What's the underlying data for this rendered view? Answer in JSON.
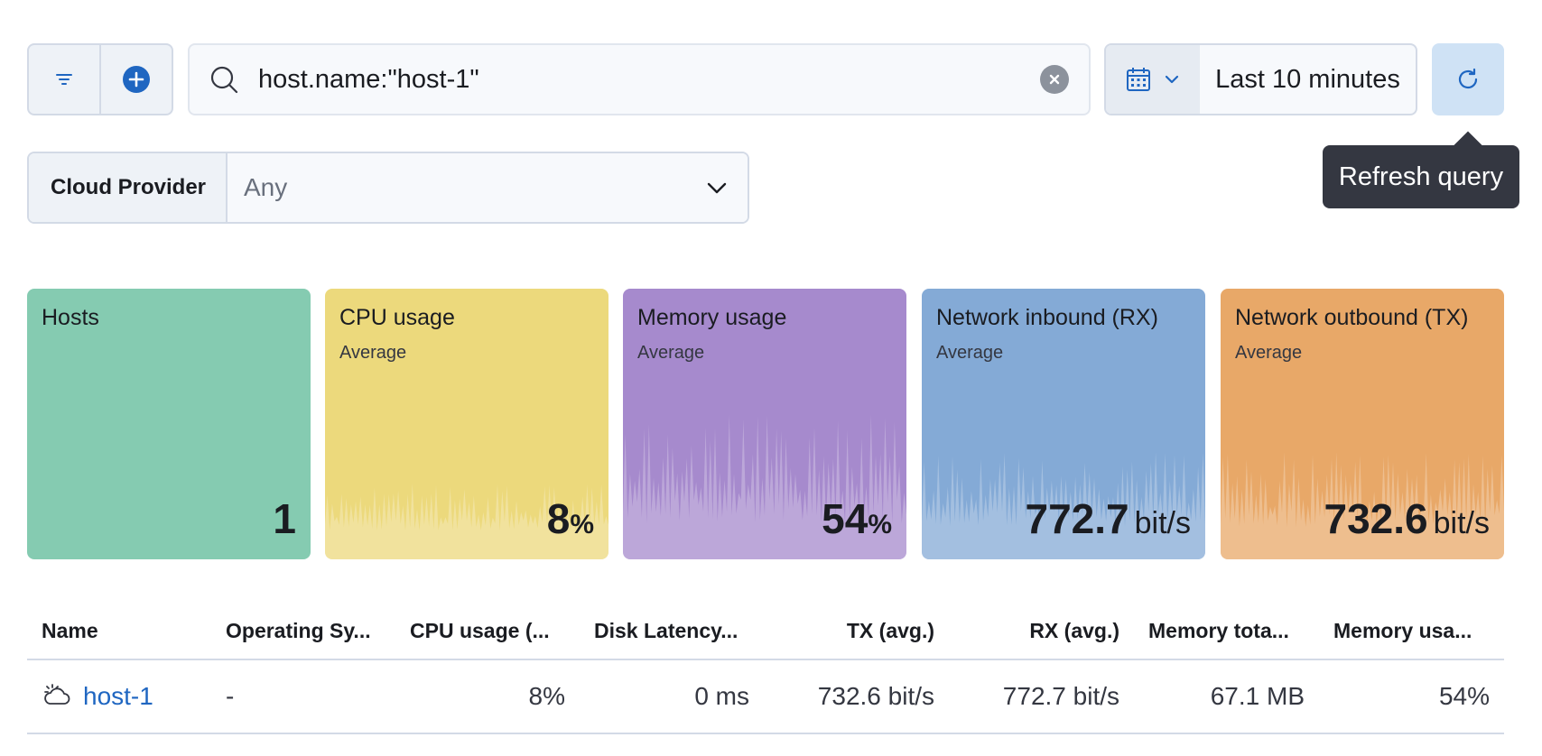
{
  "search": {
    "query": "host.name:\"host-1\""
  },
  "time_picker": {
    "range": "Last 10 minutes"
  },
  "refresh": {
    "tooltip": "Refresh query"
  },
  "controls": {
    "cloud_provider_label": "Cloud Provider",
    "cloud_provider_value": "Any"
  },
  "tiles": [
    {
      "title": "Hosts",
      "subtitle": "",
      "value": "1",
      "unit": "",
      "color": "#85cbb1"
    },
    {
      "title": "CPU usage",
      "subtitle": "Average",
      "value": "8",
      "unit": "%",
      "color": "#ecd97c"
    },
    {
      "title": "Memory usage",
      "subtitle": "Average",
      "value": "54",
      "unit": "%",
      "color": "#a68acd"
    },
    {
      "title": "Network inbound (RX)",
      "subtitle": "Average",
      "value": "772.7",
      "unit": "bit/s",
      "color": "#84aad6"
    },
    {
      "title": "Network outbound (TX)",
      "subtitle": "Average",
      "value": "732.6",
      "unit": "bit/s",
      "color": "#e8a868"
    }
  ],
  "table": {
    "headers": [
      "Name",
      "Operating Sy...",
      "CPU usage (...",
      "Disk Latency...",
      "TX (avg.)",
      "RX (avg.)",
      "Memory tota...",
      "Memory usa..."
    ],
    "rows": [
      {
        "name": "host-1",
        "os": "-",
        "cpu": "8%",
        "disk_latency": "0 ms",
        "tx": "732.6 bit/s",
        "rx": "772.7 bit/s",
        "memory_total": "67.1 MB",
        "memory_usage": "54%"
      }
    ]
  }
}
